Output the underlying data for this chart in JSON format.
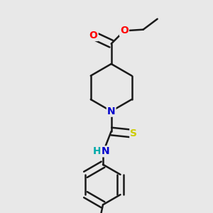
{
  "background_color": "#e8e8e8",
  "bond_color": "#1a1a1a",
  "atom_colors": {
    "O": "#ff0000",
    "N": "#0000cd",
    "S": "#cccc00",
    "NH": "#00aaaa",
    "C": "#1a1a1a"
  },
  "bond_width": 1.8,
  "font_size": 10
}
